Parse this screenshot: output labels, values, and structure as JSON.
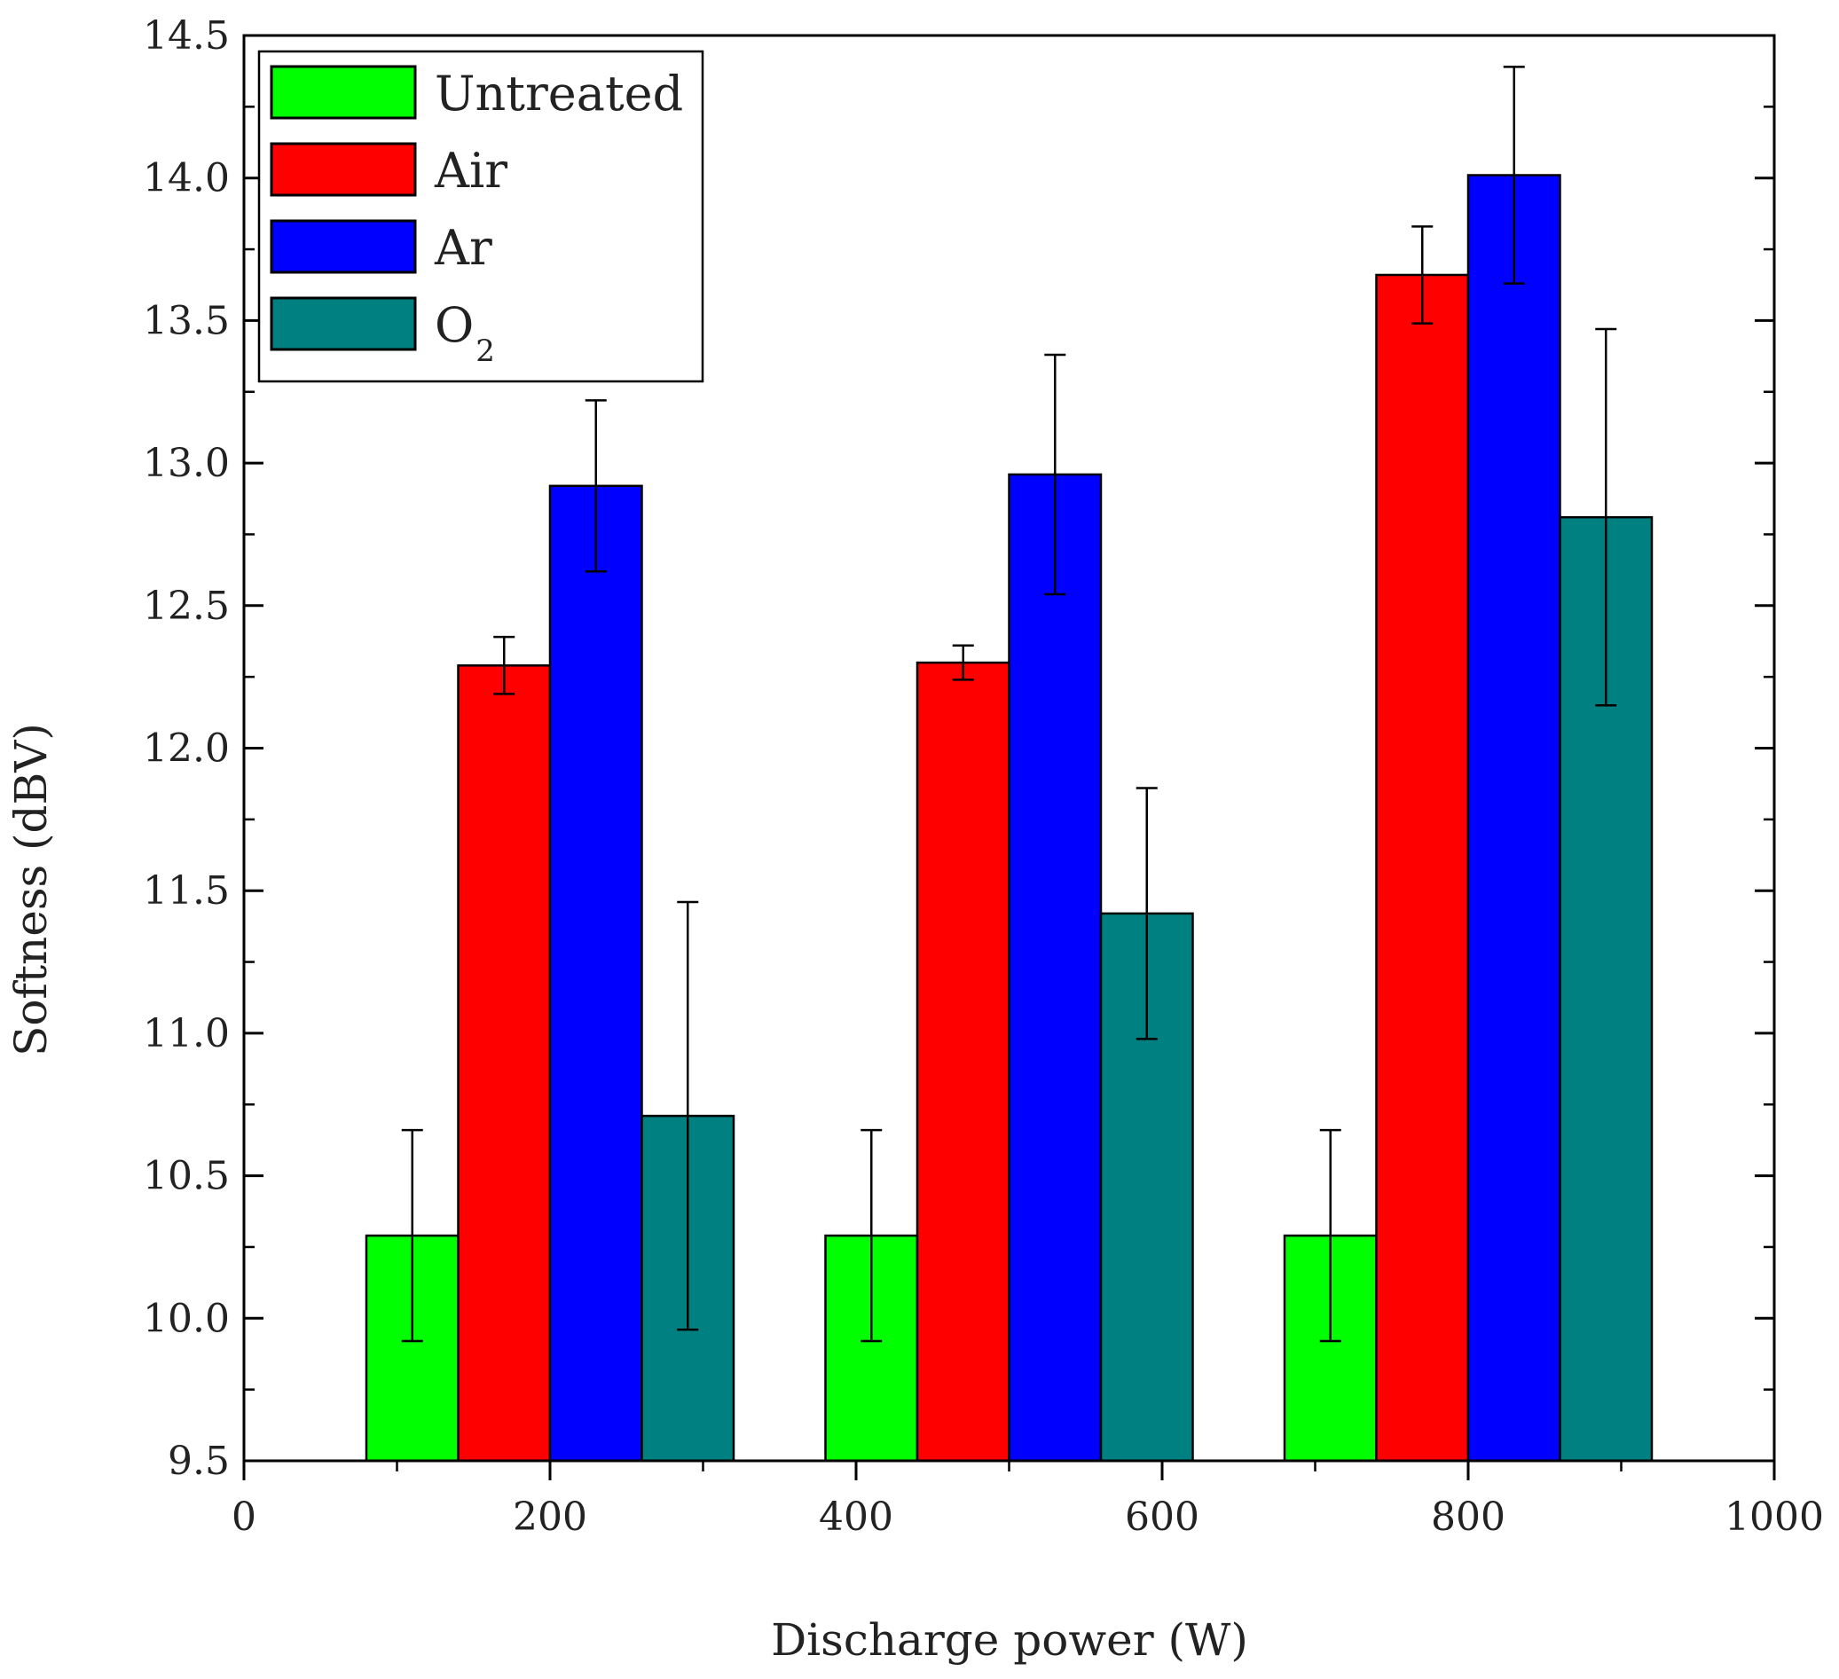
{
  "chart_data": {
    "type": "bar",
    "title": "",
    "xlabel": "Discharge power (W)",
    "ylabel": "Softness (dBV)",
    "xlim": [
      0,
      1000
    ],
    "ylim": [
      9.5,
      14.5
    ],
    "x_ticks": [
      "0",
      "200",
      "400",
      "600",
      "800",
      "1000"
    ],
    "y_ticks": [
      "9.5",
      "10.0",
      "10.5",
      "11.0",
      "11.5",
      "12.0",
      "12.5",
      "13.0",
      "13.5",
      "14.0",
      "14.5"
    ],
    "categories": [
      200,
      500,
      800
    ],
    "legend_position": "top-left",
    "series": [
      {
        "name": "Untreated",
        "color": "#00ff00",
        "values": [
          10.29,
          10.29,
          10.29
        ],
        "errors": [
          0.37,
          0.37,
          0.37
        ]
      },
      {
        "name": "Air",
        "color": "#ff0000",
        "values": [
          12.29,
          12.3,
          13.66
        ],
        "errors": [
          0.1,
          0.06,
          0.17
        ]
      },
      {
        "name": "Ar",
        "color": "#0000ff",
        "values": [
          12.92,
          12.96,
          14.01
        ],
        "errors": [
          0.3,
          0.42,
          0.38
        ]
      },
      {
        "name": "O",
        "name_subscript": "2",
        "color": "#008080",
        "values": [
          10.71,
          11.42,
          12.81
        ],
        "errors": [
          0.75,
          0.44,
          0.66
        ]
      }
    ]
  }
}
